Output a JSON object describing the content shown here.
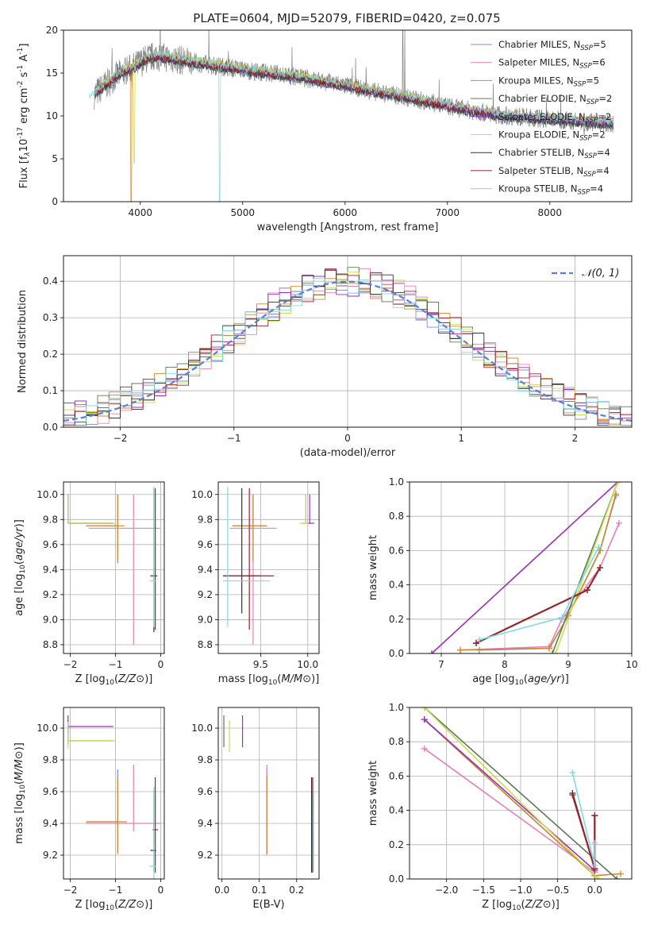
{
  "page": {
    "title": "PLATE=0604, MJD=52079, FIBERID=0420, z=0.075"
  },
  "colors": {
    "Chabrier MILES": "#7b8fe0",
    "Salpeter MILES": "#e580b5",
    "Kroupa MILES": "#d08a2a",
    "Chabrier ELODIE": "#5a7a5a",
    "Salpeter ELODIE": "#9a30b8",
    "Kroupa ELODIE": "#c8e04c",
    "Chabrier STELIB": "#333333",
    "Salpeter STELIB": "#a0202a",
    "Kroupa STELIB": "#7fdce0",
    "gauss": "#5a7fd8",
    "spectrum": "#808080"
  },
  "chart_data": [
    {
      "id": "spectrum",
      "type": "line",
      "xlabel": "wavelength [Angstrom, rest frame]",
      "ylabel_main": "Flux [f",
      "ylabel_tail": "10",
      "ylabel_exp1": "-17",
      "ylabel_mid": " erg cm",
      "ylabel_exp2": "-2",
      "ylabel_mid2": " s",
      "ylabel_exp3": "-1",
      "ylabel_end": " A",
      "ylabel_exp4": "-1",
      "ylabel_close": "]",
      "xlim": [
        3250,
        8800
      ],
      "ylim": [
        0,
        20
      ],
      "xticks": [
        4000,
        5000,
        6000,
        7000,
        8000
      ],
      "yticks": [
        0,
        5,
        10,
        15,
        20
      ],
      "grid": false,
      "legend_position": "right",
      "legend": [
        {
          "name": "Chabrier MILES",
          "nssp": "5"
        },
        {
          "name": "Salpeter MILES",
          "nssp": "6"
        },
        {
          "name": "Kroupa MILES",
          "nssp": "5"
        },
        {
          "name": "Chabrier ELODIE",
          "nssp": "2"
        },
        {
          "name": "Salpeter ELODIE",
          "nssp": "2"
        },
        {
          "name": "Kroupa ELODIE",
          "nssp": "2"
        },
        {
          "name": "Chabrier STELIB",
          "nssp": "4"
        },
        {
          "name": "Salpeter STELIB",
          "nssp": "4"
        },
        {
          "name": "Kroupa STELIB",
          "nssp": "4"
        }
      ],
      "legend_prefix": ", N",
      "legend_sub": "SSP",
      "legend_eq": "=",
      "data_shape": {
        "x": [
          3550,
          3650,
          3750,
          3850,
          3950,
          4050,
          4150,
          4250,
          4350,
          4500,
          4700,
          4900,
          5100,
          5300,
          5500,
          5700,
          5900,
          6100,
          6300,
          6500,
          6700,
          6900,
          7100,
          7300,
          7500,
          7800,
          8100,
          8400,
          8600
        ],
        "y": [
          12.5,
          13.5,
          14.5,
          15.2,
          15.8,
          16.6,
          17.0,
          16.8,
          16.6,
          16.3,
          15.9,
          15.6,
          15.2,
          14.9,
          14.6,
          14.2,
          13.8,
          13.3,
          12.8,
          12.4,
          11.9,
          11.4,
          10.9,
          10.5,
          10.1,
          9.8,
          9.5,
          9.3,
          9.1
        ]
      }
    },
    {
      "id": "residuals",
      "type": "step",
      "xlabel": "(data-model)/error",
      "ylabel": "Normed distribution",
      "xlim": [
        -2.5,
        2.5
      ],
      "ylim": [
        0,
        0.47
      ],
      "xticks": [
        -2,
        -1,
        0,
        1,
        2
      ],
      "yticks": [
        0.0,
        0.1,
        0.2,
        0.3,
        0.4
      ],
      "grid": true,
      "legend_position": "top-right",
      "gauss_label": "𝒩(0, 1)",
      "gauss": {
        "mean": 0,
        "sigma": 1
      }
    },
    {
      "id": "z-age",
      "type": "errorbar",
      "xlabel": "Z [log10(Z/Z⊙)]",
      "ylabel": "age  [log10(age/yr)]",
      "xlim": [
        -2.15,
        0.08
      ],
      "ylim": [
        8.73,
        10.1
      ],
      "xticks": [
        -2,
        -1,
        0
      ],
      "yticks": [
        8.8,
        9.0,
        9.2,
        9.4,
        9.6,
        9.8,
        10.0
      ],
      "grid": true,
      "points": [
        {
          "series": "Chabrier MILES",
          "x": -0.95,
          "y": 9.75,
          "xerr": [
            0.7,
            0.0
          ],
          "yerr": [
            0.3,
            0.25
          ]
        },
        {
          "series": "Salpeter MILES",
          "x": -0.6,
          "y": 9.73,
          "xerr": [
            1.0,
            0.6
          ],
          "yerr": [
            0.93,
            0.27
          ]
        },
        {
          "series": "Kroupa MILES",
          "x": -0.95,
          "y": 9.75,
          "xerr": [
            0.7,
            0.15
          ],
          "yerr": [
            0.28,
            0.25
          ]
        },
        {
          "series": "Chabrier ELODIE",
          "x": -2.05,
          "y": 9.77,
          "xerr": [
            0.0,
            1.0
          ],
          "yerr": [
            0.0,
            0.23
          ]
        },
        {
          "series": "Salpeter ELODIE",
          "x": -2.05,
          "y": 9.77,
          "xerr": [
            0.0,
            1.0
          ],
          "yerr": [
            0.0,
            0.23
          ]
        },
        {
          "series": "Kroupa ELODIE",
          "x": -2.05,
          "y": 9.77,
          "xerr": [
            0.0,
            1.05
          ],
          "yerr": [
            0.0,
            0.23
          ]
        },
        {
          "series": "Chabrier STELIB",
          "x": -0.15,
          "y": 9.35,
          "xerr": [
            0.08,
            0.05
          ],
          "yerr": [
            0.45,
            0.7
          ]
        },
        {
          "series": "Salpeter STELIB",
          "x": -0.12,
          "y": 9.35,
          "xerr": [
            0.05,
            0.05
          ],
          "yerr": [
            0.43,
            0.7
          ]
        },
        {
          "series": "Kroupa STELIB",
          "x": -0.15,
          "y": 9.31,
          "xerr": [
            0.1,
            0.05
          ],
          "yerr": [
            0.37,
            0.75
          ]
        }
      ]
    },
    {
      "id": "mass-age",
      "type": "errorbar",
      "xlabel": "mass [log10(M/M⊙)]",
      "ylabel": "",
      "xlim": [
        9.05,
        10.12
      ],
      "ylim": [
        8.73,
        10.1
      ],
      "xticks": [
        9.5,
        10.0
      ],
      "yticks": [
        8.8,
        9.0,
        9.2,
        9.4,
        9.6,
        9.8,
        10.0
      ],
      "grid": true,
      "points": [
        {
          "series": "Chabrier MILES",
          "x": 9.42,
          "y": 9.75,
          "xerr": [
            0.22,
            0.14
          ],
          "yerr": [
            0.3,
            0.25
          ]
        },
        {
          "series": "Salpeter MILES",
          "x": 9.42,
          "y": 9.73,
          "xerr": [
            0.25,
            0.25
          ],
          "yerr": [
            0.93,
            0.27
          ]
        },
        {
          "series": "Kroupa MILES",
          "x": 9.42,
          "y": 9.75,
          "xerr": [
            0.22,
            0.15
          ],
          "yerr": [
            0.28,
            0.25
          ]
        },
        {
          "series": "Chabrier ELODIE",
          "x": 9.98,
          "y": 9.77,
          "xerr": [
            0.05,
            0.05
          ],
          "yerr": [
            0.0,
            0.23
          ]
        },
        {
          "series": "Salpeter ELODIE",
          "x": 10.02,
          "y": 9.77,
          "xerr": [
            0.05,
            0.05
          ],
          "yerr": [
            0.0,
            0.23
          ]
        },
        {
          "series": "Kroupa ELODIE",
          "x": 9.98,
          "y": 9.77,
          "xerr": [
            0.06,
            0.03
          ],
          "yerr": [
            0.0,
            0.23
          ]
        },
        {
          "series": "Chabrier STELIB",
          "x": 9.3,
          "y": 9.35,
          "xerr": [
            0.2,
            0.2
          ],
          "yerr": [
            0.3,
            0.7
          ]
        },
        {
          "series": "Salpeter STELIB",
          "x": 9.38,
          "y": 9.35,
          "xerr": [
            0.27,
            0.26
          ],
          "yerr": [
            0.43,
            0.7
          ]
        },
        {
          "series": "Kroupa STELIB",
          "x": 9.15,
          "y": 9.31,
          "xerr": [
            0.05,
            0.45
          ],
          "yerr": [
            0.37,
            0.75
          ]
        }
      ]
    },
    {
      "id": "age-weight",
      "type": "line",
      "xlabel": "age  [log10(age/yr)]",
      "ylabel": "mass weight",
      "xlim": [
        6.5,
        10
      ],
      "ylim": [
        0,
        1
      ],
      "xticks": [
        7,
        8,
        9,
        10
      ],
      "yticks": [
        0.0,
        0.2,
        0.4,
        0.6,
        0.8,
        1.0
      ],
      "grid": true,
      "series": [
        {
          "name": "Chabrier MILES",
          "x": [
            7.6,
            8.7,
            9.0,
            9.5,
            9.75
          ],
          "y": [
            0.02,
            0.03,
            0.22,
            0.6,
            0.92
          ]
        },
        {
          "name": "Salpeter MILES",
          "x": [
            7.3,
            8.7,
            8.9,
            9.5,
            9.8
          ],
          "y": [
            0.02,
            0.04,
            0.2,
            0.5,
            0.76
          ]
        },
        {
          "name": "Kroupa MILES",
          "x": [
            7.3,
            8.7,
            9.0,
            9.5,
            9.75
          ],
          "y": [
            0.02,
            0.03,
            0.22,
            0.6,
            0.93
          ]
        },
        {
          "name": "Chabrier ELODIE",
          "x": [
            8.75,
            9.78
          ],
          "y": [
            0.0,
            1.0
          ]
        },
        {
          "name": "Salpeter ELODIE",
          "x": [
            6.85,
            9.78
          ],
          "y": [
            0.0,
            1.0
          ]
        },
        {
          "name": "Kroupa ELODIE",
          "x": [
            8.8,
            9.78
          ],
          "y": [
            0.0,
            1.0
          ]
        },
        {
          "name": "Chabrier STELIB",
          "x": [
            7.55,
            9.3,
            9.5
          ],
          "y": [
            0.06,
            0.37,
            0.5
          ]
        },
        {
          "name": "Salpeter STELIB",
          "x": [
            7.55,
            9.3,
            9.5
          ],
          "y": [
            0.06,
            0.37,
            0.5
          ]
        },
        {
          "name": "Kroupa STELIB",
          "x": [
            7.6,
            8.9,
            9.48
          ],
          "y": [
            0.08,
            0.21,
            0.62
          ]
        }
      ]
    },
    {
      "id": "z-mass",
      "type": "errorbar",
      "xlabel": "Z [log10(Z/Z⊙)]",
      "ylabel": "mass [log10(M/M⊙)]",
      "xlim": [
        -2.15,
        0.08
      ],
      "ylim": [
        9.05,
        10.13
      ],
      "xticks": [
        -2,
        -1,
        0
      ],
      "yticks": [
        9.2,
        9.4,
        9.6,
        9.8,
        10.0
      ],
      "grid": true,
      "points": [
        {
          "series": "Chabrier MILES",
          "x": -0.95,
          "y": 9.41,
          "xerr": [
            0.7,
            0.0
          ],
          "yerr": [
            0.2,
            0.33
          ]
        },
        {
          "series": "Salpeter MILES",
          "x": -0.6,
          "y": 9.4,
          "xerr": [
            1.05,
            0.6
          ],
          "yerr": [
            0.05,
            0.37
          ]
        },
        {
          "series": "Kroupa MILES",
          "x": -0.95,
          "y": 9.41,
          "xerr": [
            0.7,
            0.2
          ],
          "yerr": [
            0.2,
            0.28
          ]
        },
        {
          "series": "Chabrier ELODIE",
          "x": -2.05,
          "y": 9.92,
          "xerr": [
            0.0,
            1.0
          ],
          "yerr": [
            0.02,
            0.13
          ]
        },
        {
          "series": "Salpeter ELODIE",
          "x": -2.05,
          "y": 10.01,
          "xerr": [
            0.0,
            1.0
          ],
          "yerr": [
            0.05,
            0.07
          ]
        },
        {
          "series": "Kroupa ELODIE",
          "x": -2.05,
          "y": 9.92,
          "xerr": [
            0.0,
            1.05
          ],
          "yerr": [
            0.05,
            0.12
          ]
        },
        {
          "series": "Chabrier STELIB",
          "x": -0.15,
          "y": 9.23,
          "xerr": [
            0.08,
            0.05
          ],
          "yerr": [
            0.13,
            0.38
          ]
        },
        {
          "series": "Salpeter STELIB",
          "x": -0.12,
          "y": 9.36,
          "xerr": [
            0.06,
            0.06
          ],
          "yerr": [
            0.27,
            0.33
          ]
        },
        {
          "series": "Kroupa STELIB",
          "x": -0.15,
          "y": 9.13,
          "xerr": [
            0.1,
            0.05
          ],
          "yerr": [
            0.08,
            0.5
          ]
        }
      ]
    },
    {
      "id": "ebv-mass",
      "type": "errorbar",
      "xlabel": "E(B-V)",
      "ylabel": "",
      "xlim": [
        -0.01,
        0.26
      ],
      "ylim": [
        9.05,
        10.13
      ],
      "xticks": [
        0.0,
        0.1,
        0.2
      ],
      "yticks": [
        9.2,
        9.4,
        9.6,
        9.8,
        10.0
      ],
      "grid": true,
      "points": [
        {
          "series": "Chabrier MILES",
          "x": 0.12,
          "y": 9.41,
          "xerr": [
            0,
            0
          ],
          "yerr": [
            0.2,
            0.33
          ]
        },
        {
          "series": "Salpeter MILES",
          "x": 0.12,
          "y": 9.45,
          "xerr": [
            0,
            0
          ],
          "yerr": [
            0.25,
            0.32
          ]
        },
        {
          "series": "Kroupa MILES",
          "x": 0.12,
          "y": 9.41,
          "xerr": [
            0,
            0
          ],
          "yerr": [
            0.2,
            0.29
          ]
        },
        {
          "series": "Chabrier ELODIE",
          "x": 0.005,
          "y": 9.98,
          "xerr": [
            0,
            0
          ],
          "yerr": [
            0.1,
            0.1
          ]
        },
        {
          "series": "Salpeter ELODIE",
          "x": 0.055,
          "y": 9.98,
          "xerr": [
            0,
            0
          ],
          "yerr": [
            0.1,
            0.1
          ]
        },
        {
          "series": "Kroupa ELODIE",
          "x": 0.02,
          "y": 9.95,
          "xerr": [
            0,
            0
          ],
          "yerr": [
            0.1,
            0.1
          ]
        },
        {
          "series": "Chabrier STELIB",
          "x": 0.24,
          "y": 9.36,
          "xerr": [
            0,
            0
          ],
          "yerr": [
            0.27,
            0.33
          ]
        },
        {
          "series": "Salpeter STELIB",
          "x": 0.243,
          "y": 9.36,
          "xerr": [
            0,
            0
          ],
          "yerr": [
            0.27,
            0.33
          ]
        },
        {
          "series": "Kroupa STELIB",
          "x": 0.245,
          "y": 9.2,
          "xerr": [
            0,
            0
          ],
          "yerr": [
            0.1,
            0.4
          ]
        }
      ]
    },
    {
      "id": "z-weight",
      "type": "line",
      "xlabel": "Z [log10(Z/Z⊙)]",
      "ylabel": "mass weight",
      "xlim": [
        -2.5,
        0.5
      ],
      "ylim": [
        0,
        1
      ],
      "xticks": [
        -2.0,
        -1.5,
        -1.0,
        -0.5,
        0.0
      ],
      "yticks": [
        0.0,
        0.2,
        0.4,
        0.6,
        0.8,
        1.0
      ],
      "grid": true,
      "series": [
        {
          "name": "Chabrier MILES",
          "x": [
            -2.3,
            0.0
          ],
          "y": [
            0.93,
            0.02
          ]
        },
        {
          "name": "Salpeter MILES",
          "x": [
            -2.3,
            0.0
          ],
          "y": [
            0.76,
            0.04
          ]
        },
        {
          "name": "Kroupa MILES",
          "x": [
            -2.3,
            0.0,
            0.35
          ],
          "y": [
            0.93,
            0.02,
            0.03
          ]
        },
        {
          "name": "Chabrier ELODIE",
          "x": [
            -2.3,
            0.3
          ],
          "y": [
            1.0,
            0.0
          ]
        },
        {
          "name": "Salpeter ELODIE",
          "x": [
            -2.3,
            0.0
          ],
          "y": [
            0.93,
            0.05
          ]
        },
        {
          "name": "Kroupa ELODIE",
          "x": [
            -2.3,
            0.05
          ],
          "y": [
            1.0,
            0.0
          ]
        },
        {
          "name": "Chabrier STELIB",
          "x": [
            -0.3,
            0.0,
            0.0
          ],
          "y": [
            0.5,
            0.06,
            0.37
          ]
        },
        {
          "name": "Salpeter STELIB",
          "x": [
            -0.3,
            0.0,
            0.0
          ],
          "y": [
            0.49,
            0.06,
            0.37
          ]
        },
        {
          "name": "Kroupa STELIB",
          "x": [
            -0.3,
            0.0,
            0.0
          ],
          "y": [
            0.62,
            0.08,
            0.21
          ]
        }
      ]
    }
  ]
}
